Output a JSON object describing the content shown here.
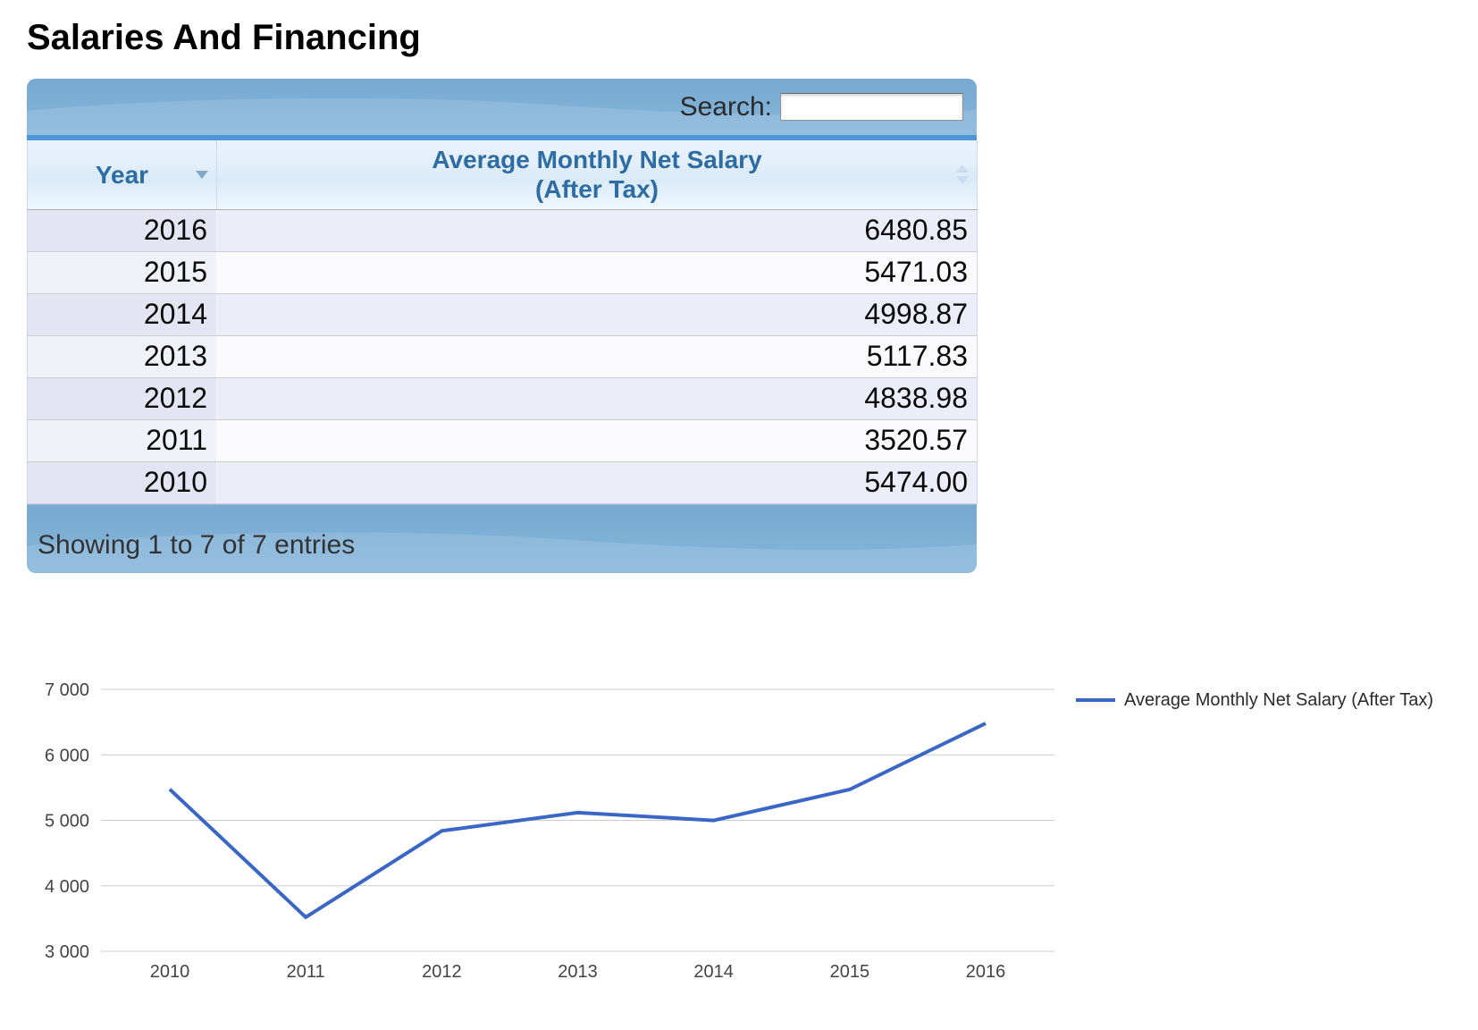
{
  "page": {
    "title": "Salaries And Financing"
  },
  "table": {
    "search": {
      "label": "Search:",
      "value": ""
    },
    "columns": [
      {
        "label": "Year"
      },
      {
        "line1": "Average Monthly Net Salary",
        "line2": "(After Tax)"
      }
    ],
    "rows": [
      {
        "year": "2016",
        "salary": "6480.85"
      },
      {
        "year": "2015",
        "salary": "5471.03"
      },
      {
        "year": "2014",
        "salary": "4998.87"
      },
      {
        "year": "2013",
        "salary": "5117.83"
      },
      {
        "year": "2012",
        "salary": "4838.98"
      },
      {
        "year": "2011",
        "salary": "3520.57"
      },
      {
        "year": "2010",
        "salary": "5474.00"
      }
    ],
    "info": "Showing 1 to 7 of 7 entries"
  },
  "chart_data": {
    "type": "line",
    "x": [
      "2010",
      "2011",
      "2012",
      "2013",
      "2014",
      "2015",
      "2016"
    ],
    "series": [
      {
        "name": "Average Monthly Net Salary (After Tax)",
        "values": [
          5474.0,
          3520.57,
          4838.98,
          5117.83,
          4998.87,
          5471.03,
          6480.85
        ]
      }
    ],
    "title": "",
    "xlabel": "",
    "ylabel": "",
    "ylim": [
      3000,
      7000
    ],
    "yticks": [
      3000,
      4000,
      5000,
      6000,
      7000
    ],
    "ytick_labels": [
      "3 000",
      "4 000",
      "5 000",
      "6 000",
      "7 000"
    ],
    "grid": true,
    "legend_position": "right",
    "line_color": "#3a66c6",
    "gridline_color": "#cccccc",
    "axis_label_color": "#444444"
  }
}
